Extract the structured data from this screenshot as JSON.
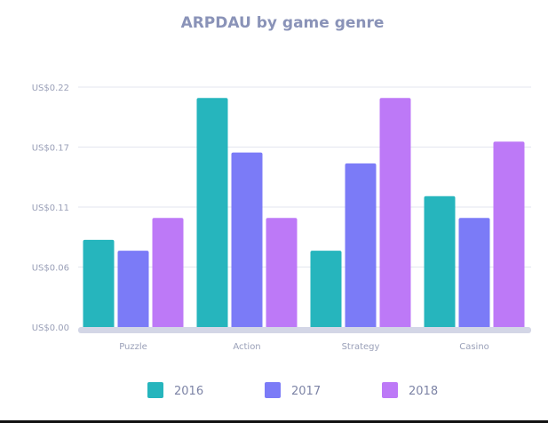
{
  "chart_data": {
    "type": "bar",
    "title": "ARPDAU by game genre",
    "xlabel": "",
    "ylabel": "",
    "categories": [
      "Puzzle",
      "Action",
      "Strategy",
      "Casino"
    ],
    "series": [
      {
        "name": "2016",
        "color": "#26b5bd",
        "values": [
          0.08,
          0.21,
          0.07,
          0.12
        ]
      },
      {
        "name": "2017",
        "color": "#7b7bf7",
        "values": [
          0.07,
          0.16,
          0.15,
          0.1
        ]
      },
      {
        "name": "2018",
        "color": "#bd79f7",
        "values": [
          0.1,
          0.1,
          0.21,
          0.17
        ]
      }
    ],
    "ylim": [
      0,
      0.22
    ],
    "yticks": [
      0,
      0.055,
      0.11,
      0.165,
      0.22
    ],
    "ytick_labels": [
      "US$0.00",
      "US$0.06",
      "US$0.11",
      "US$0.17",
      "US$0.22"
    ],
    "grid": true,
    "legend_position": "bottom"
  }
}
